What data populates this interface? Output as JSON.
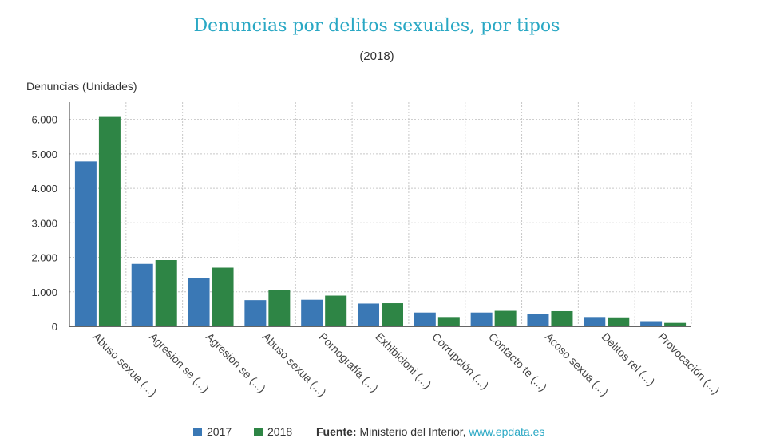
{
  "chart_data": {
    "type": "bar",
    "title": "Denuncias por delitos sexuales, por tipos",
    "subtitle": "(2018)",
    "ylabel": "Denuncias (Unidades)",
    "xlabel": "",
    "ylim": [
      0,
      6500
    ],
    "yticks": [
      0,
      1000,
      2000,
      3000,
      4000,
      5000,
      6000
    ],
    "ytick_labels": [
      "0",
      "1.000",
      "2.000",
      "3.000",
      "4.000",
      "5.000",
      "6.000"
    ],
    "grid": true,
    "legend_position": "bottom",
    "categories": [
      "Abuso sexua (...)",
      "Agresión se (...)",
      "Agresión se (...)",
      "Abuso sexua (...)",
      "Pornografía (...)",
      "Exhibicioni (...)",
      "Corrupción (...)",
      "Contacto te (...)",
      "Acoso sexua (...)",
      "Delitos rel (...)",
      "Provocación (...)"
    ],
    "series": [
      {
        "name": "2017",
        "color": "#3a78b5",
        "values": [
          4780,
          1810,
          1390,
          760,
          770,
          660,
          400,
          400,
          360,
          270,
          150
        ]
      },
      {
        "name": "2018",
        "color": "#2e8545",
        "values": [
          6070,
          1920,
          1700,
          1050,
          890,
          670,
          270,
          450,
          440,
          260,
          100
        ]
      }
    ]
  },
  "footer": {
    "source_label": "Fuente:",
    "source_text": "Ministerio del Interior,",
    "source_link": "www.epdata.es"
  }
}
